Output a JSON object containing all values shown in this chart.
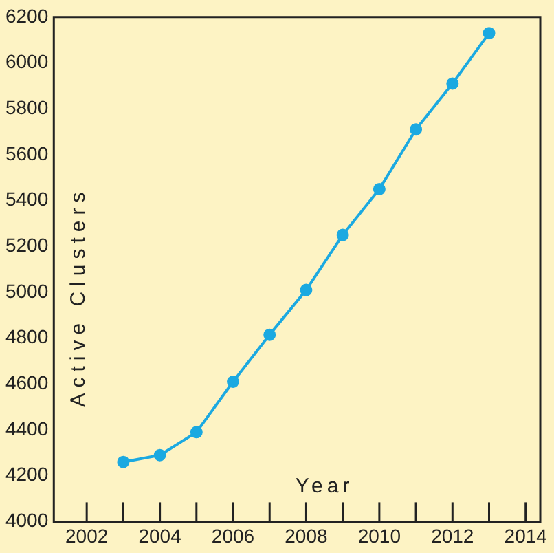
{
  "chart_data": {
    "type": "line",
    "xlabel": "Year",
    "ylabel": "Active Clusters",
    "x": [
      2003,
      2004,
      2005,
      2006,
      2007,
      2008,
      2009,
      2010,
      2011,
      2012,
      2013
    ],
    "series": [
      {
        "color": "#1ba9e1",
        "values": [
          4260,
          4290,
          4390,
          4610,
          4815,
          5010,
          5250,
          5450,
          5710,
          5910,
          6130
        ]
      }
    ],
    "xlim": [
      2001.1,
      2014.4
    ],
    "xticks": [
      2002,
      {
        "value": 2003,
        "label": null
      },
      2004,
      {
        "value": 2005,
        "label": null
      },
      2006,
      {
        "value": 2007,
        "label": null
      },
      2008,
      {
        "value": 2009,
        "label": null
      },
      2010,
      {
        "value": 2011,
        "label": null
      },
      2012,
      {
        "value": 2013,
        "label": null
      },
      2014
    ],
    "ylim": [
      4000,
      6200
    ],
    "yticks": [
      4000,
      4200,
      4400,
      4600,
      4800,
      5000,
      5200,
      5400,
      5600,
      5800,
      6000,
      6200
    ],
    "grid": false,
    "legend": false,
    "marker": "circle",
    "line_style": "solid"
  }
}
